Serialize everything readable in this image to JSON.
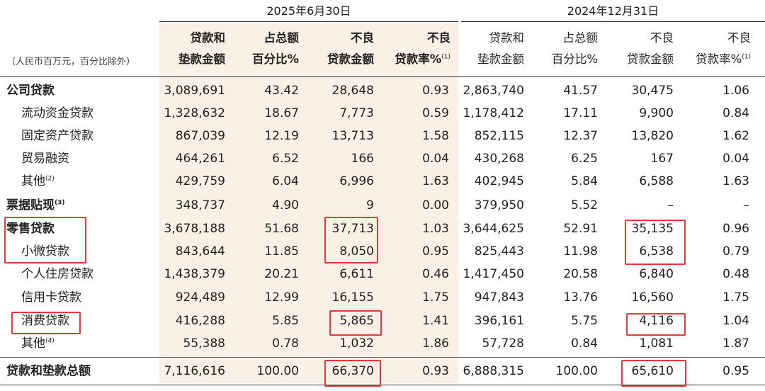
{
  "periods": {
    "current": "2025年6月30日",
    "previous": "2024年12月31日"
  },
  "unit_note": "（人民币百万元，百分比除外）",
  "headers": {
    "loans_line1": "贷款和",
    "loans_line2": "垫款金额",
    "share_line1": "占总额",
    "share_line2": "百分比%",
    "npl_line1": "不良",
    "npl_line2": "贷款金额",
    "ratio_line1": "不良",
    "ratio_line2": "贷款率%",
    "ratio_note": "(1)"
  },
  "rows": [
    {
      "label": "公司贷款",
      "note": "",
      "bold": true,
      "cur": [
        "3,089,691",
        "43.42",
        "28,648",
        "0.93"
      ],
      "prev": [
        "2,863,740",
        "41.57",
        "30,475",
        "1.06"
      ]
    },
    {
      "label": "流动资金贷款",
      "note": "",
      "bold": false,
      "cur": [
        "1,328,632",
        "18.67",
        "7,773",
        "0.59"
      ],
      "prev": [
        "1,178,412",
        "17.11",
        "9,900",
        "0.84"
      ]
    },
    {
      "label": "固定资产贷款",
      "note": "",
      "bold": false,
      "cur": [
        "867,039",
        "12.19",
        "13,713",
        "1.58"
      ],
      "prev": [
        "852,115",
        "12.37",
        "13,820",
        "1.62"
      ]
    },
    {
      "label": "贸易融资",
      "note": "",
      "bold": false,
      "cur": [
        "464,261",
        "6.52",
        "166",
        "0.04"
      ],
      "prev": [
        "430,268",
        "6.25",
        "167",
        "0.04"
      ]
    },
    {
      "label": "其他",
      "note": "(2)",
      "bold": false,
      "cur": [
        "429,759",
        "6.04",
        "6,996",
        "1.63"
      ],
      "prev": [
        "402,945",
        "5.84",
        "6,588",
        "1.63"
      ]
    },
    {
      "label": "票据贴现",
      "note": "(3)",
      "bold": true,
      "cur": [
        "348,737",
        "4.90",
        "9",
        "0.00"
      ],
      "prev": [
        "379,950",
        "5.52",
        "–",
        "–"
      ]
    },
    {
      "label": "零售贷款",
      "note": "",
      "bold": true,
      "cur": [
        "3,678,188",
        "51.68",
        "37,713",
        "1.03"
      ],
      "prev": [
        "3,644,625",
        "52.91",
        "35,135",
        "0.96"
      ]
    },
    {
      "label": "小微贷款",
      "note": "",
      "bold": false,
      "cur": [
        "843,644",
        "11.85",
        "8,050",
        "0.95"
      ],
      "prev": [
        "825,443",
        "11.98",
        "6,538",
        "0.79"
      ]
    },
    {
      "label": "个人住房贷款",
      "note": "",
      "bold": false,
      "cur": [
        "1,438,379",
        "20.21",
        "6,611",
        "0.46"
      ],
      "prev": [
        "1,417,450",
        "20.58",
        "6,840",
        "0.48"
      ]
    },
    {
      "label": "信用卡贷款",
      "note": "",
      "bold": false,
      "cur": [
        "924,489",
        "12.99",
        "16,155",
        "1.75"
      ],
      "prev": [
        "947,843",
        "13.76",
        "16,560",
        "1.75"
      ]
    },
    {
      "label": "消费贷款",
      "note": "",
      "bold": false,
      "cur": [
        "416,288",
        "5.85",
        "5,865",
        "1.41"
      ],
      "prev": [
        "396,161",
        "5.75",
        "4,116",
        "1.04"
      ]
    },
    {
      "label": "其他",
      "note": "(4)",
      "bold": false,
      "cur": [
        "55,388",
        "0.78",
        "1,032",
        "1.86"
      ],
      "prev": [
        "57,728",
        "0.84",
        "1,081",
        "1.87"
      ]
    },
    {
      "label": "贷款和垫款总额",
      "note": "",
      "bold": true,
      "cur": [
        "7,116,616",
        "100.00",
        "66,370",
        "0.93"
      ],
      "prev": [
        "6,888,315",
        "100.00",
        "65,610",
        "0.95"
      ]
    }
  ],
  "highlight_color": "#e8383d"
}
